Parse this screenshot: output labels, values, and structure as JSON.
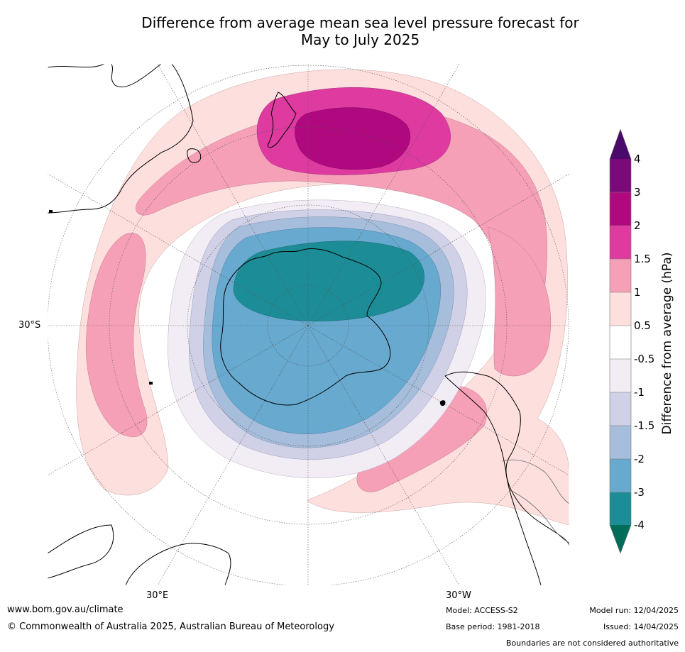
{
  "title_line1": "Difference from average mean sea level pressure forecast for",
  "title_line2": "May to July 2025",
  "lat_labels": {
    "left": "30°S",
    "bottom_left": "30°E",
    "bottom_right": "30°W"
  },
  "colorbar": {
    "title": "Difference from average (hPa)",
    "ticks": [
      "4",
      "3",
      "2",
      "1.5",
      "1",
      "0.5",
      "-0.5",
      "-1",
      "-1.5",
      "-2",
      "-3",
      "-4"
    ],
    "colors": {
      "gt_4": "#4a0a6b",
      "3_4": "#7a0a7a",
      "2_3": "#b0087e",
      "1_5_2": "#de3aa0",
      "1_1_5": "#f6a0b8",
      "0_5_1": "#fde0de",
      "neutral": "#ffffff",
      "m1_m0_5": "#f2ecf4",
      "m1_5_m1": "#d0d1e6",
      "m2_m1_5": "#a6bddb",
      "m3_m2": "#67a9cf",
      "m4_m3": "#1c8d96",
      "lt_m4": "#016c59"
    }
  },
  "footer": {
    "website": "www.bom.gov.au/climate",
    "copyright": "© Commonwealth of Australia 2025, Australian Bureau of Meteorology",
    "model": "Model: ACCESS-S2",
    "base_period": "Base period: 1981-2018",
    "model_run": "Model run: 12/04/2025",
    "issued": "Issued: 14/04/2025",
    "disclaimer": "Boundaries are not considered authoritative"
  }
}
